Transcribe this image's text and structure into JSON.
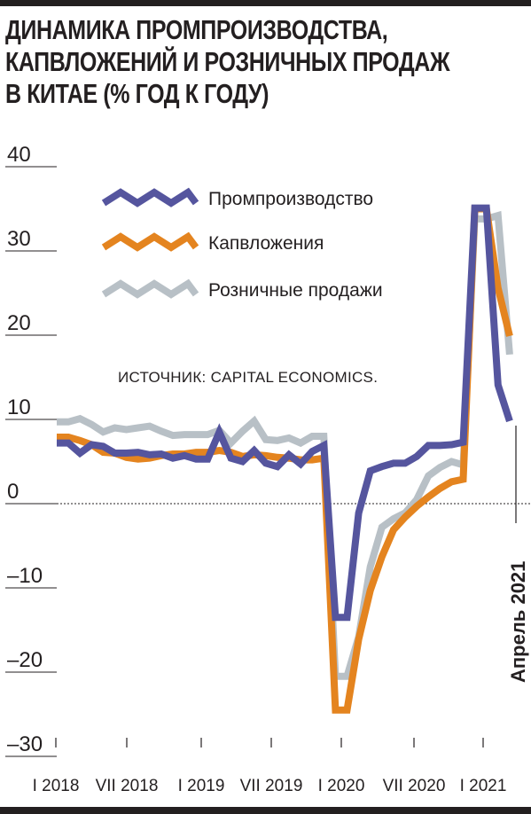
{
  "title_lines": [
    "ДИНАМИКА ПРОМПРОИЗВОДСТВА,",
    "КАПВЛОЖЕНИЙ И РОЗНИЧНЫХ ПРОДАЖ",
    "В КИТАЕ (% ГОД К ГОДУ)"
  ],
  "source": "ИСТОЧНИК: CAPITAL ECONOMICS.",
  "marker_label": "Апрель 2021",
  "colors": {
    "industrial": "#55559e",
    "investment": "#e4841f",
    "retail": "#b8c0c6",
    "text": "#231f20"
  },
  "chart_data": {
    "type": "line",
    "title": "ДИНАМИКА ПРОМПРОИЗВОДСТВА, КАПВЛОЖЕНИЙ И РОЗНИЧНЫХ ПРОДАЖ В КИТАЕ (% ГОД К ГОДУ)",
    "xlabel": "",
    "ylabel": "",
    "ylim": [
      -30,
      40
    ],
    "yticks": [
      "40",
      "30",
      "20",
      "10",
      "0",
      "–10",
      "–20",
      "–30"
    ],
    "ytick_values": [
      40,
      30,
      20,
      10,
      0,
      -10,
      -20,
      -30
    ],
    "xticks": [
      "I 2018",
      "VII 2018",
      "I 2019",
      "VII 2019",
      "I 2020",
      "VII 2020",
      "I 2021"
    ],
    "x": [
      "2018-01",
      "2018-02",
      "2018-03",
      "2018-04",
      "2018-05",
      "2018-06",
      "2018-07",
      "2018-08",
      "2018-09",
      "2018-10",
      "2018-11",
      "2018-12",
      "2019-01",
      "2019-02",
      "2019-03",
      "2019-04",
      "2019-05",
      "2019-06",
      "2019-07",
      "2019-08",
      "2019-09",
      "2019-10",
      "2019-11",
      "2019-12",
      "2020-01",
      "2020-02",
      "2020-03",
      "2020-04",
      "2020-05",
      "2020-06",
      "2020-07",
      "2020-08",
      "2020-09",
      "2020-10",
      "2020-11",
      "2020-12",
      "2021-01",
      "2021-02",
      "2021-03",
      "2021-04"
    ],
    "grid": false,
    "zero_line": "dashed",
    "legend_position": "top-center",
    "marker": {
      "x": "2021-04",
      "label": "Апрель 2021"
    },
    "series": [
      {
        "name": "Промпроизводство",
        "color": "#55559e",
        "values": [
          7.2,
          7.2,
          6.0,
          7.0,
          6.8,
          6.0,
          6.0,
          6.1,
          5.8,
          5.9,
          5.4,
          5.7,
          5.3,
          5.3,
          8.5,
          5.4,
          5.0,
          6.3,
          4.8,
          4.4,
          5.8,
          4.7,
          6.2,
          6.9,
          -13.5,
          -13.5,
          -1.1,
          3.9,
          4.4,
          4.8,
          4.8,
          5.6,
          6.9,
          6.9,
          7.0,
          7.3,
          35.1,
          35.1,
          14.1,
          9.8
        ]
      },
      {
        "name": "Капвложения",
        "color": "#e4841f",
        "values": [
          7.9,
          7.9,
          7.5,
          7.0,
          6.1,
          6.0,
          5.5,
          5.3,
          5.4,
          5.7,
          5.9,
          5.9,
          6.1,
          6.1,
          6.3,
          6.1,
          5.6,
          5.8,
          5.7,
          5.5,
          5.4,
          5.2,
          5.2,
          5.4,
          -24.5,
          -24.5,
          -16.1,
          -10.3,
          -6.3,
          -3.1,
          -1.6,
          -0.3,
          0.8,
          1.8,
          2.6,
          2.9,
          35.0,
          35.0,
          25.6,
          19.9
        ]
      },
      {
        "name": "Розничные продажи",
        "color": "#b8c0c6",
        "values": [
          9.7,
          9.7,
          10.1,
          9.4,
          8.5,
          9.0,
          8.8,
          9.0,
          9.2,
          8.6,
          8.1,
          8.2,
          8.2,
          8.2,
          8.7,
          7.2,
          8.6,
          9.8,
          7.6,
          7.5,
          7.8,
          7.2,
          8.0,
          8.0,
          -20.5,
          -20.5,
          -15.8,
          -7.5,
          -2.8,
          -1.8,
          -1.1,
          0.5,
          3.3,
          4.3,
          5.0,
          4.6,
          33.8,
          33.8,
          34.2,
          17.7
        ]
      }
    ]
  }
}
